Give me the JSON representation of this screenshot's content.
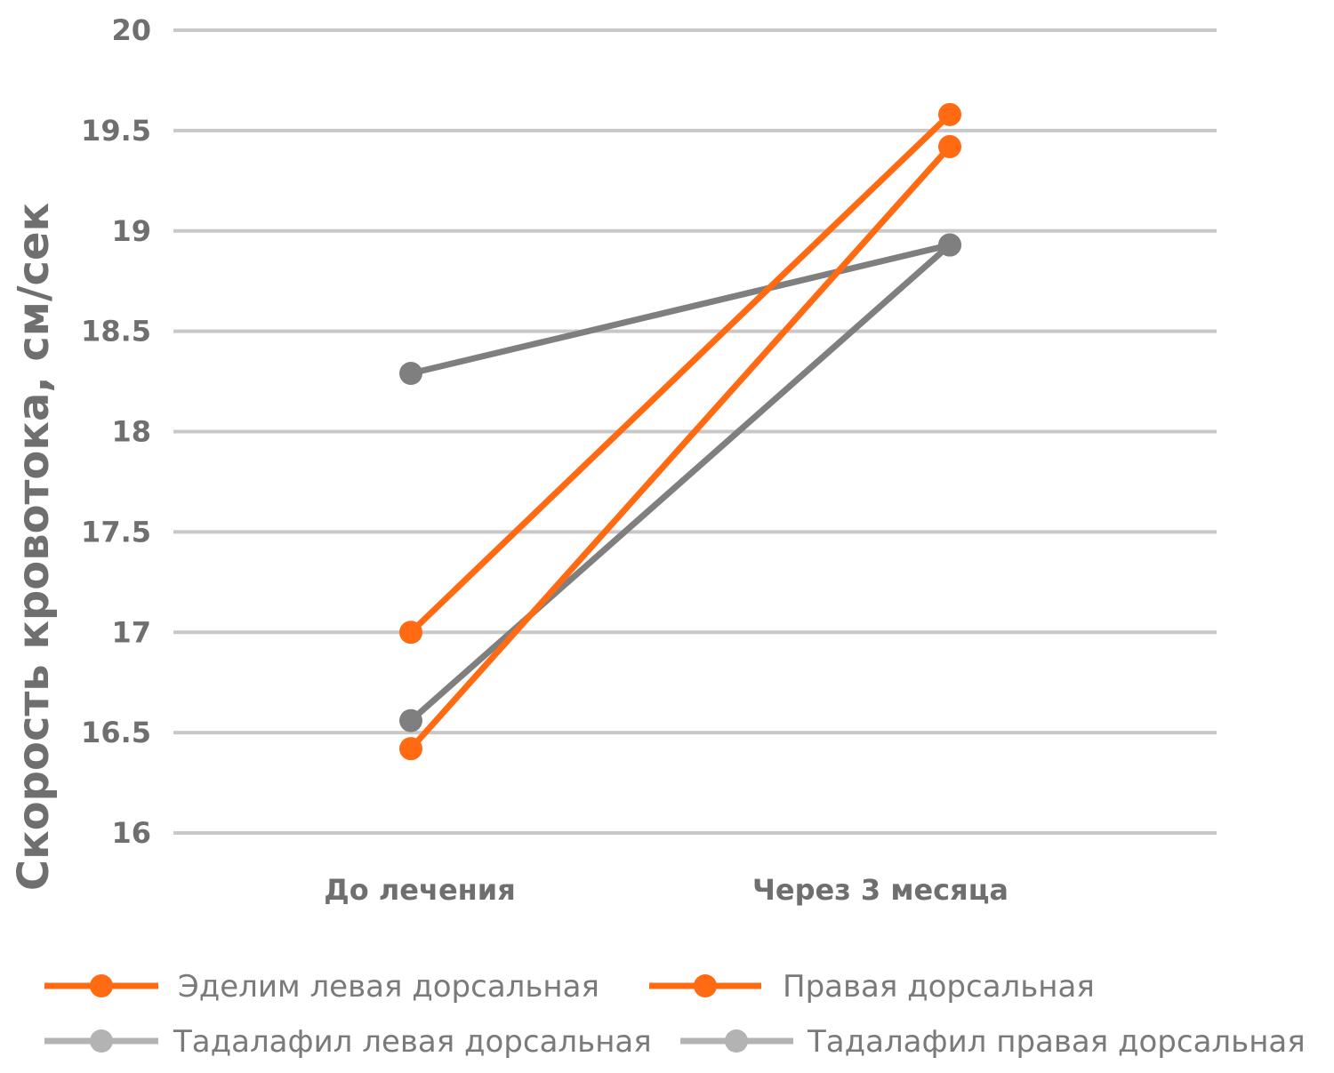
{
  "chart_data": {
    "type": "line",
    "ylabel": "Скорость кровотока, см/сек",
    "ylim": [
      16,
      20
    ],
    "yticks": [
      "16",
      "16.5",
      "17",
      "17.5",
      "18",
      "18.5",
      "19",
      "19.5",
      "20"
    ],
    "categories": [
      "До лечения",
      "Через 3 месяца"
    ],
    "grid": true,
    "legend_position": "bottom",
    "series": [
      {
        "name": "Эделим левая дорсальная",
        "color": "#ff6a13",
        "values": [
          17.0,
          19.58
        ]
      },
      {
        "name": "Правая дорсальная",
        "color": "#ff6a13",
        "values": [
          16.42,
          19.42
        ]
      },
      {
        "name": "Тадалафил левая дорсальная",
        "color": "#7f7f7f",
        "legend_color": "#b3b3b3",
        "values": [
          18.29,
          18.93
        ]
      },
      {
        "name": "Тадалафил правая дорсальная",
        "color": "#7f7f7f",
        "legend_color": "#b3b3b3",
        "values": [
          16.56,
          18.93
        ]
      }
    ]
  }
}
